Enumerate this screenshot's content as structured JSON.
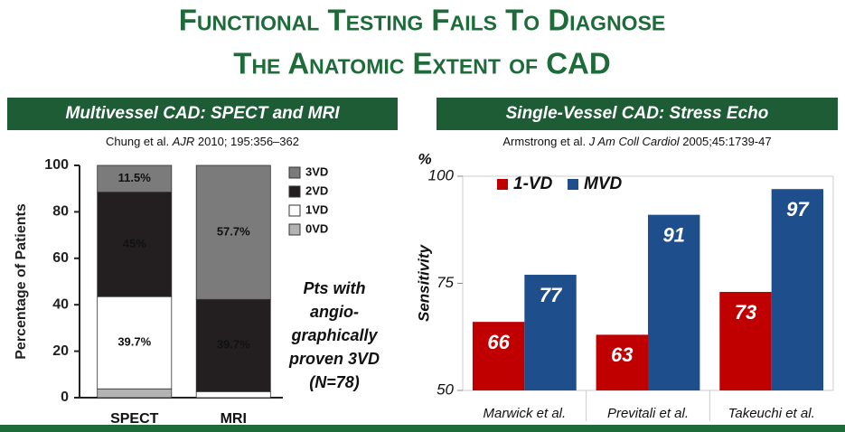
{
  "header": {
    "title": [
      "Functional Testing Fails To Diagnose",
      "The Anatomic Extent of CAD"
    ]
  },
  "chart_data": [
    {
      "type": "stacked_bar",
      "title": "Multivessel CAD: SPECT and MRI",
      "subtitle": [
        "Chung et al. ",
        "AJR",
        " 2010; 195:356–362"
      ],
      "y_label": "Percentage of Patients",
      "categories": [
        "SPECT",
        "MRI"
      ],
      "series": [
        {
          "name": "0VD",
          "color": "#b3b3b3",
          "values": [
            3.8,
            0
          ],
          "value_labels": [
            null,
            null
          ]
        },
        {
          "name": "1VD",
          "color": "#ffffff",
          "values": [
            39.7,
            2.6
          ],
          "value_labels": [
            "39.7%",
            null
          ]
        },
        {
          "name": "2VD",
          "color": "#231f20",
          "values": [
            45,
            39.7
          ],
          "value_labels": [
            "45%",
            "39.7%"
          ]
        },
        {
          "name": "3VD",
          "color": "#7b7b7b",
          "values": [
            11.5,
            57.7
          ],
          "value_labels": [
            "11.5%",
            "57.7%"
          ]
        }
      ],
      "ylim": [
        0,
        100
      ],
      "yticks": [
        0,
        20,
        40,
        60,
        80,
        100
      ],
      "annotation": [
        "Pts with",
        "angio-",
        "graphically",
        "proven 3VD",
        "(N=78)"
      ]
    },
    {
      "type": "bar",
      "title": "Single-Vessel CAD: Stress Echo",
      "subtitle": [
        "Armstrong et al. ",
        "J Am Coll Cardiol",
        " 2005;45:1739-47"
      ],
      "y_label": "Sensitivity",
      "y_unit": "%",
      "categories": [
        "Marwick et al.",
        "Previtali et al.",
        "Takeuchi et al."
      ],
      "series": [
        {
          "name": "1-VD",
          "color": "#c00000",
          "values": [
            66,
            63,
            73
          ]
        },
        {
          "name": "MVD",
          "color": "#1f4e8c",
          "values": [
            77,
            91,
            97
          ]
        }
      ],
      "ylim": [
        50,
        100
      ],
      "yticks": [
        50,
        75,
        100
      ]
    }
  ]
}
